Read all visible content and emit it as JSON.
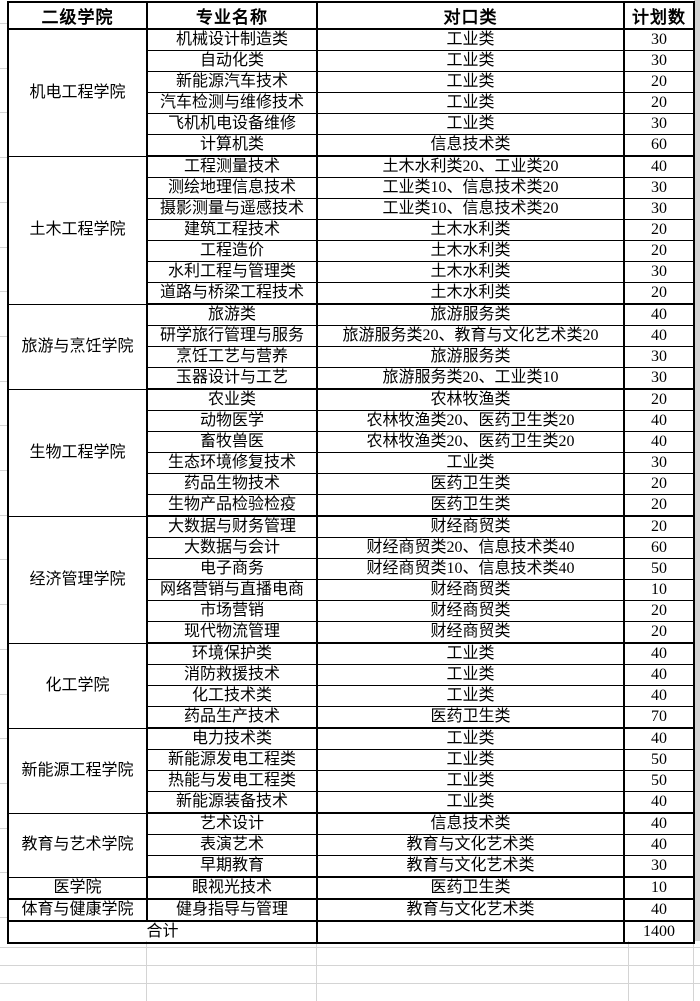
{
  "table": {
    "headers": [
      "二级学院",
      "专业名称",
      "对口类",
      "计划数"
    ],
    "groups": [
      {
        "college": "机电工程学院",
        "majors": [
          {
            "major": "机械设计制造类",
            "category": "工业类",
            "plan": "30"
          },
          {
            "major": "自动化类",
            "category": "工业类",
            "plan": "30"
          },
          {
            "major": "新能源汽车技术",
            "category": "工业类",
            "plan": "20"
          },
          {
            "major": "汽车检测与维修技术",
            "category": "工业类",
            "plan": "20"
          },
          {
            "major": "飞机机电设备维修",
            "category": "工业类",
            "plan": "30"
          },
          {
            "major": "计算机类",
            "category": "信息技术类",
            "plan": "60"
          }
        ]
      },
      {
        "college": "土木工程学院",
        "majors": [
          {
            "major": "工程测量技术",
            "category": "土木水利类20、工业类20",
            "plan": "40"
          },
          {
            "major": "测绘地理信息技术",
            "category": "工业类10、信息技术类20",
            "plan": "30"
          },
          {
            "major": "摄影测量与遥感技术",
            "category": "工业类10、信息技术类20",
            "plan": "30"
          },
          {
            "major": "建筑工程技术",
            "category": "土木水利类",
            "plan": "20"
          },
          {
            "major": "工程造价",
            "category": "土木水利类",
            "plan": "20"
          },
          {
            "major": "水利工程与管理类",
            "category": "土木水利类",
            "plan": "30"
          },
          {
            "major": "道路与桥梁工程技术",
            "category": "土木水利类",
            "plan": "20"
          }
        ]
      },
      {
        "college": "旅游与烹饪学院",
        "majors": [
          {
            "major": "旅游类",
            "category": "旅游服务类",
            "plan": "40"
          },
          {
            "major": "研学旅行管理与服务",
            "category": "旅游服务类20、教育与文化艺术类20",
            "plan": "40"
          },
          {
            "major": "烹饪工艺与营养",
            "category": "旅游服务类",
            "plan": "30"
          },
          {
            "major": "玉器设计与工艺",
            "category": "旅游服务类20、工业类10",
            "plan": "30"
          }
        ]
      },
      {
        "college": "生物工程学院",
        "majors": [
          {
            "major": "农业类",
            "category": "农林牧渔类",
            "plan": "20"
          },
          {
            "major": "动物医学",
            "category": "农林牧渔类20、医药卫生类20",
            "plan": "40"
          },
          {
            "major": "畜牧兽医",
            "category": "农林牧渔类20、医药卫生类20",
            "plan": "40"
          },
          {
            "major": "生态环境修复技术",
            "category": "工业类",
            "plan": "30"
          },
          {
            "major": "药品生物技术",
            "category": "医药卫生类",
            "plan": "20"
          },
          {
            "major": "生物产品检验检疫",
            "category": "医药卫生类",
            "plan": "20"
          }
        ]
      },
      {
        "college": "经济管理学院",
        "majors": [
          {
            "major": "大数据与财务管理",
            "category": "财经商贸类",
            "plan": "20"
          },
          {
            "major": "大数据与会计",
            "category": "财经商贸类20、信息技术类40",
            "plan": "60"
          },
          {
            "major": "电子商务",
            "category": "财经商贸类10、信息技术类40",
            "plan": "50"
          },
          {
            "major": "网络营销与直播电商",
            "category": "财经商贸类",
            "plan": "10"
          },
          {
            "major": "市场营销",
            "category": "财经商贸类",
            "plan": "20"
          },
          {
            "major": "现代物流管理",
            "category": "财经商贸类",
            "plan": "20"
          }
        ]
      },
      {
        "college": "化工学院",
        "majors": [
          {
            "major": "环境保护类",
            "category": "工业类",
            "plan": "40"
          },
          {
            "major": "消防救援技术",
            "category": "工业类",
            "plan": "40"
          },
          {
            "major": "化工技术类",
            "category": "工业类",
            "plan": "40"
          },
          {
            "major": "药品生产技术",
            "category": "医药卫生类",
            "plan": "70"
          }
        ]
      },
      {
        "college": "新能源工程学院",
        "majors": [
          {
            "major": "电力技术类",
            "category": "工业类",
            "plan": "40"
          },
          {
            "major": "新能源发电工程类",
            "category": "工业类",
            "plan": "50"
          },
          {
            "major": "热能与发电工程类",
            "category": "工业类",
            "plan": "50"
          },
          {
            "major": "新能源装备技术",
            "category": "工业类",
            "plan": "40"
          }
        ]
      },
      {
        "college": "教育与艺术学院",
        "majors": [
          {
            "major": "艺术设计",
            "category": "信息技术类",
            "plan": "40"
          },
          {
            "major": "表演艺术",
            "category": "教育与文化艺术类",
            "plan": "40"
          },
          {
            "major": "早期教育",
            "category": "教育与文化艺术类",
            "plan": "30"
          }
        ]
      },
      {
        "college": "医学院",
        "majors": [
          {
            "major": "眼视光技术",
            "category": "医药卫生类",
            "plan": "10"
          }
        ]
      },
      {
        "college": "体育与健康学院",
        "majors": [
          {
            "major": "健身指导与管理",
            "category": "教育与文化艺术类",
            "plan": "40"
          }
        ]
      }
    ],
    "total": {
      "label": "合计",
      "category": "",
      "value": "1400"
    }
  },
  "colors": {
    "table_border": "#000000",
    "sheet_gridline": "#d4d4d4",
    "background": "#ffffff"
  }
}
